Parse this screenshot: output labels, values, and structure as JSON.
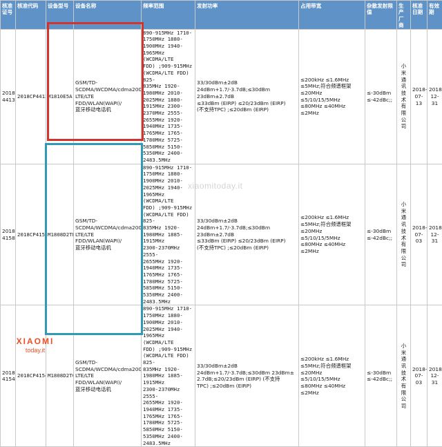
{
  "headers": {
    "col1": "核准证号",
    "col2": "核准代码",
    "col3": "设备型号",
    "col4": "设备名称",
    "col5": "频率范围",
    "col6": "发射功率",
    "col7": "占用带宽",
    "col8": "杂散发射限值",
    "col9": "生产厂商",
    "col10": "核准日期",
    "col11": "有效期"
  },
  "rows": [
    {
      "cert_no": "2018-\n4413",
      "code": "2018CP4413",
      "model": "M1810E5A",
      "name": "GSM/TD-\nSCDMA/WCDMA/cdma2000/TD-\nLTE/LTE FDD/WLAN(WAPI)/\n蓝牙移动电话机",
      "freq": "890-915MHz 1710-\n1750MHz 1880-\n1900MHz 1940-\n1965MHz (WCDMA/LTE\nFDD) ;909-915MHz\n(WCDMA/LTE FDD)\n825-\n835MHz 1920-1980MHz 2010-\n2025MHz 1880-\n1915MHz 2300-\n2370MHz 2555-\n2655MHz 1920-\n1940MHz 1735-\n1765MHz 1765-\n1780MHz 5725-\n5850MHz 5150-\n5350MHz 2400-\n2483.5MHz",
      "power": "33/30dBm±2dB\n24dBm+1.7/-3.7dB;≤30dBm 23dBm±2.7dB\n≤33dBm (EIRP) ≤20/23dBm (EIRP)\n(不支持TPC) ;≤20dBm (EIRP)",
      "bandwidth": "≤200kHz ≤1.6MHz\n≤5MHz;符合频谱框架\n≤20MHz ≤5/10/15/5MHz\n≤80MHz ≤40MHz ≤2MHz",
      "spurious": "≤-30dBm\n≤-42dBc;;",
      "maker": "小\n米\n通\n讯\n技\n术\n有\n限\n公\n司",
      "date": "2018-\n07-13",
      "valid": "2018-\n12-31"
    },
    {
      "cert_no": "2018-\n4158",
      "code": "2018CP4158",
      "model": "M1808D2TE",
      "name": "GSM/TD-\nSCDMA/WCDMA/cdma2000/TD-\nLTE/LTE FDD/WLAN(WAPI)/\n蓝牙移动电话机",
      "freq": "890-915MHz 1710-\n1750MHz 1880-\n1900MHz 2010-\n2025MHz 1940-\n1965MHz (WCDMA/LTE\nFDD) ;909-915MHz\n(WCDMA/LTE FDD)\n825-\n835MHz 1920-1980MHz 1885-1915MHz\n2300-2370MHz 2555-\n2655MHz 1920-\n1940MHz 1735-\n1765MHz 1765-\n1780MHz 5725-\n5850MHz 5150-\n5350MHz 2400-\n2483.5MHz",
      "power": "33/30dBm±2dB\n24dBm+1.7/-3.7dB;≤30dBm 23dBm±2.7dB\n≤33dBm (EIRP) ≤20/23dBm (EIRP)\n(不支持TPC) ;≤20dBm (EIRP)",
      "bandwidth": "≤200kHz ≤1.6MHz\n≤5MHz;符合频谱框架\n≤20MHz ≤5/10/15/5MHz\n≤80MHz ≤40MHz ≤2MHz",
      "spurious": "≤-30dBm\n≤-42dBc;;",
      "maker": "小\n米\n通\n讯\n技\n术\n有\n限\n公\n司",
      "date": "2018-\n07-03",
      "valid": "2018-\n12-31"
    },
    {
      "cert_no": "2018-\n4154",
      "code": "2018CP4154",
      "model": "M1808D2TC",
      "name": "GSM/TD-\nSCDMA/WCDMA/cdma2000/TD-\nLTE/LTE FDD/WLAN(WAPI)/\n蓝牙移动电话机",
      "freq": "890-915MHz 1710-\n1750MHz 1880-\n1900MHz 2010-\n2025MHz 1940-\n1965MHz (WCDMA/LTE\nFDD) ;909-915MHz\n(WCDMA/LTE FDD)\n825-\n835MHz 1920-1980MHz 1885-1915MHz\n2300-2370MHz 2555-\n2655MHz 1920-\n1940MHz 1735-\n1765MHz 1765-\n1780MHz 5725-\n5850MHz 5150-\n5350MHz 2400-\n2483.5MHz",
      "power": "33/30dBm±2dB\n24dBm+1.7/-3.7dB;≤30dBm 23dBm±\n2.7dB;≤20/23dBm (EIRP) (不支持\nTPC) ;≤20dBm (EIRP)",
      "bandwidth": "≤200kHz ≤1.6MHz\n≤5MHz;符合频谱框架\n≤20MHz ≤5/10/15/5MHz\n≤80MHz ≤40MHz ≤2MHz",
      "spurious": "≤-30dBm\n≤-42dBc;;",
      "maker": "小\n米\n通\n讯\n技\n术\n有\n限\n公\n司",
      "date": "2018-\n07-03",
      "valid": "2018-\n12-31"
    }
  ],
  "watermark": "xiaomitoday.it",
  "logo": {
    "line1": "XIAOMI",
    "line2": "today.it"
  },
  "colors": {
    "header_bg": "#5f93c8",
    "highlight_red": "#d0342c",
    "highlight_blue": "#2e9ab5",
    "logo": "#e94f23"
  }
}
